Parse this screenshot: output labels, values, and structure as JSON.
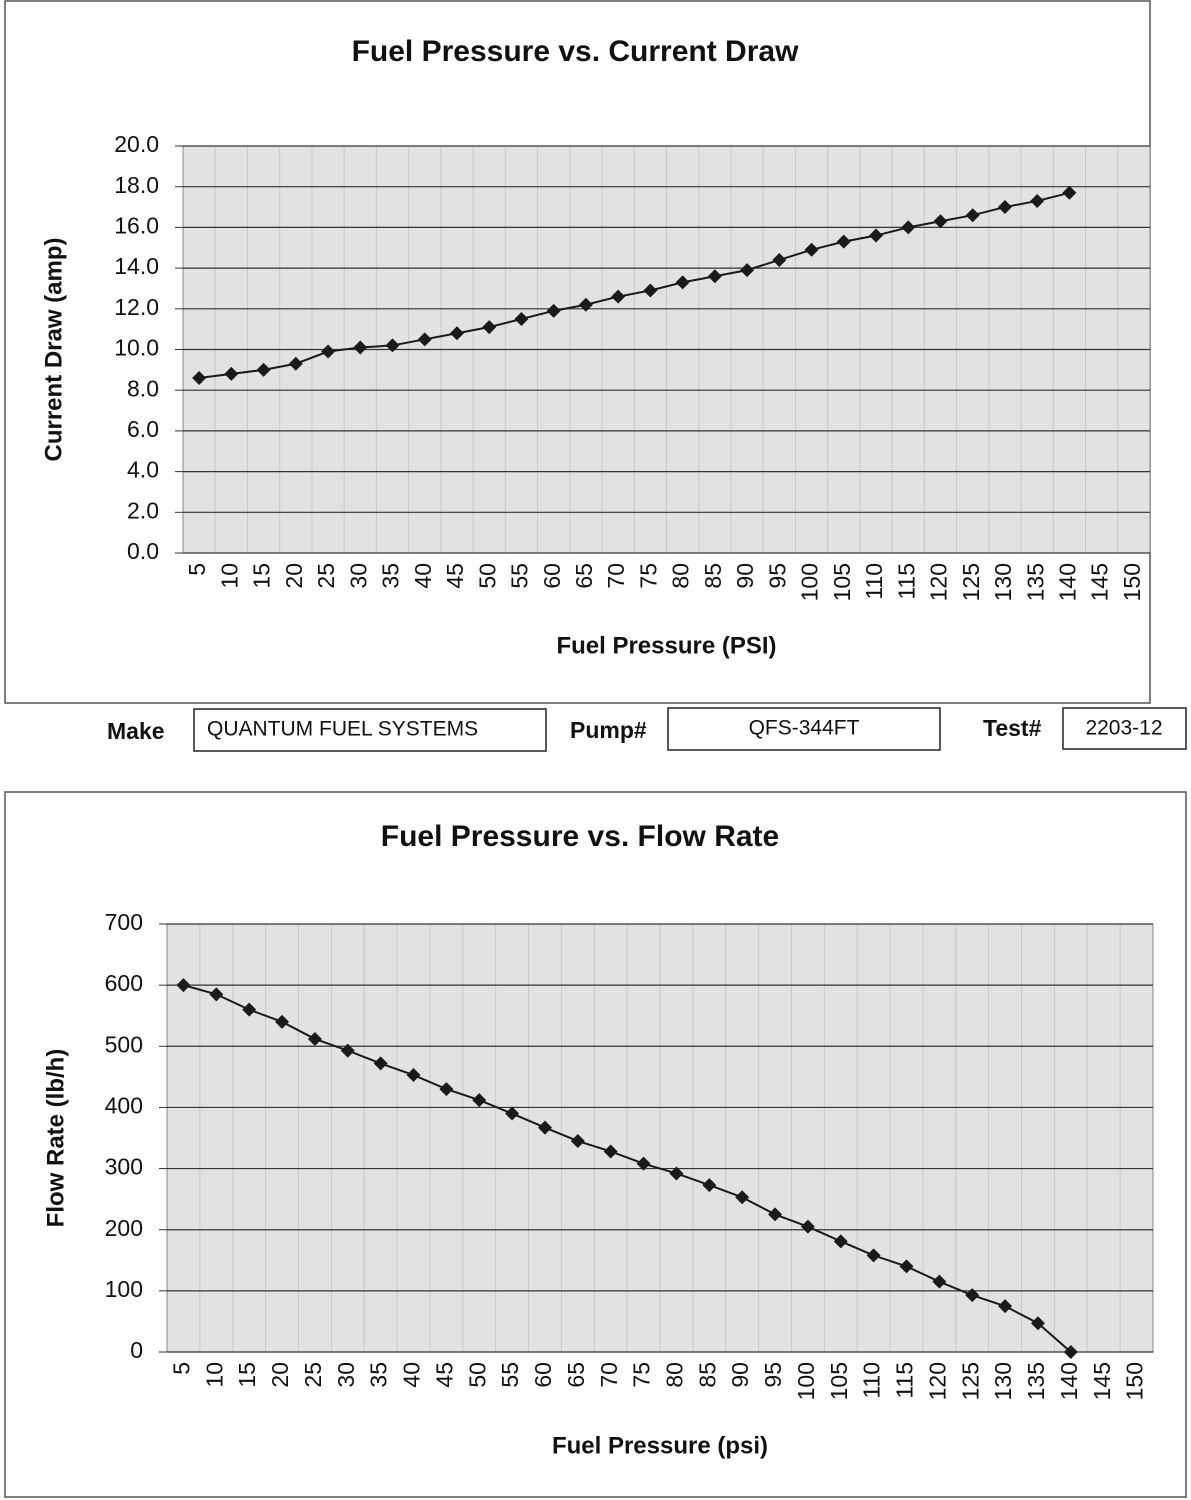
{
  "chart_data": [
    {
      "type": "line",
      "title": "Fuel Pressure vs. Current Draw",
      "x_label": "Fuel Pressure (PSI)",
      "y_label": "Current Draw (amp)",
      "categories": [
        "5",
        "10",
        "15",
        "20",
        "25",
        "30",
        "35",
        "40",
        "45",
        "50",
        "55",
        "60",
        "65",
        "70",
        "75",
        "80",
        "85",
        "90",
        "95",
        "100",
        "105",
        "110",
        "115",
        "120",
        "125",
        "130",
        "135",
        "140",
        "145",
        "150"
      ],
      "values": [
        8.6,
        8.8,
        9.0,
        9.3,
        9.9,
        10.1,
        10.2,
        10.5,
        10.8,
        11.1,
        11.5,
        11.9,
        12.2,
        12.6,
        12.9,
        13.3,
        13.6,
        13.9,
        14.4,
        14.9,
        15.3,
        15.6,
        16.0,
        16.3,
        16.6,
        17.0,
        17.3,
        17.7,
        null,
        null
      ],
      "color": "#1a1a1a",
      "ylim": [
        0,
        20
      ],
      "yticks": [
        {
          "value": 0,
          "label": "0.0"
        },
        {
          "value": 2,
          "label": "2.0"
        },
        {
          "value": 4,
          "label": "4.0"
        },
        {
          "value": 6,
          "label": "6.0"
        },
        {
          "value": 8,
          "label": "8.0"
        },
        {
          "value": 10,
          "label": "10.0"
        },
        {
          "value": 12,
          "label": "12.0"
        },
        {
          "value": 14,
          "label": "14.0"
        },
        {
          "value": 16,
          "label": "16.0"
        },
        {
          "value": 18,
          "label": "18.0"
        },
        {
          "value": 20,
          "label": "20.0"
        }
      ],
      "grid": true
    },
    {
      "type": "line",
      "title": "Fuel Pressure vs. Flow Rate",
      "x_label": "Fuel Pressure (psi)",
      "y_label": "Flow Rate (lb/h)",
      "categories": [
        "5",
        "10",
        "15",
        "20",
        "25",
        "30",
        "35",
        "40",
        "45",
        "50",
        "55",
        "60",
        "65",
        "70",
        "75",
        "80",
        "85",
        "90",
        "95",
        "100",
        "105",
        "110",
        "115",
        "120",
        "125",
        "130",
        "135",
        "140",
        "145",
        "150"
      ],
      "values": [
        600,
        585,
        560,
        540,
        512,
        493,
        472,
        453,
        430,
        412,
        390,
        367,
        345,
        328,
        308,
        292,
        273,
        253,
        225,
        205,
        181,
        158,
        140,
        115,
        93,
        75,
        47,
        0,
        null,
        null
      ],
      "color": "#1a1a1a",
      "ylim": [
        0,
        700
      ],
      "yticks": [
        0,
        100,
        200,
        300,
        400,
        500,
        600,
        700
      ],
      "grid": true
    }
  ],
  "form": {
    "make_label": "Make",
    "make": "QUANTUM FUEL SYSTEMS",
    "pump_label": "Pump#",
    "pump": "QFS-344FT",
    "test_label": "Test#",
    "test": "2203-12"
  }
}
